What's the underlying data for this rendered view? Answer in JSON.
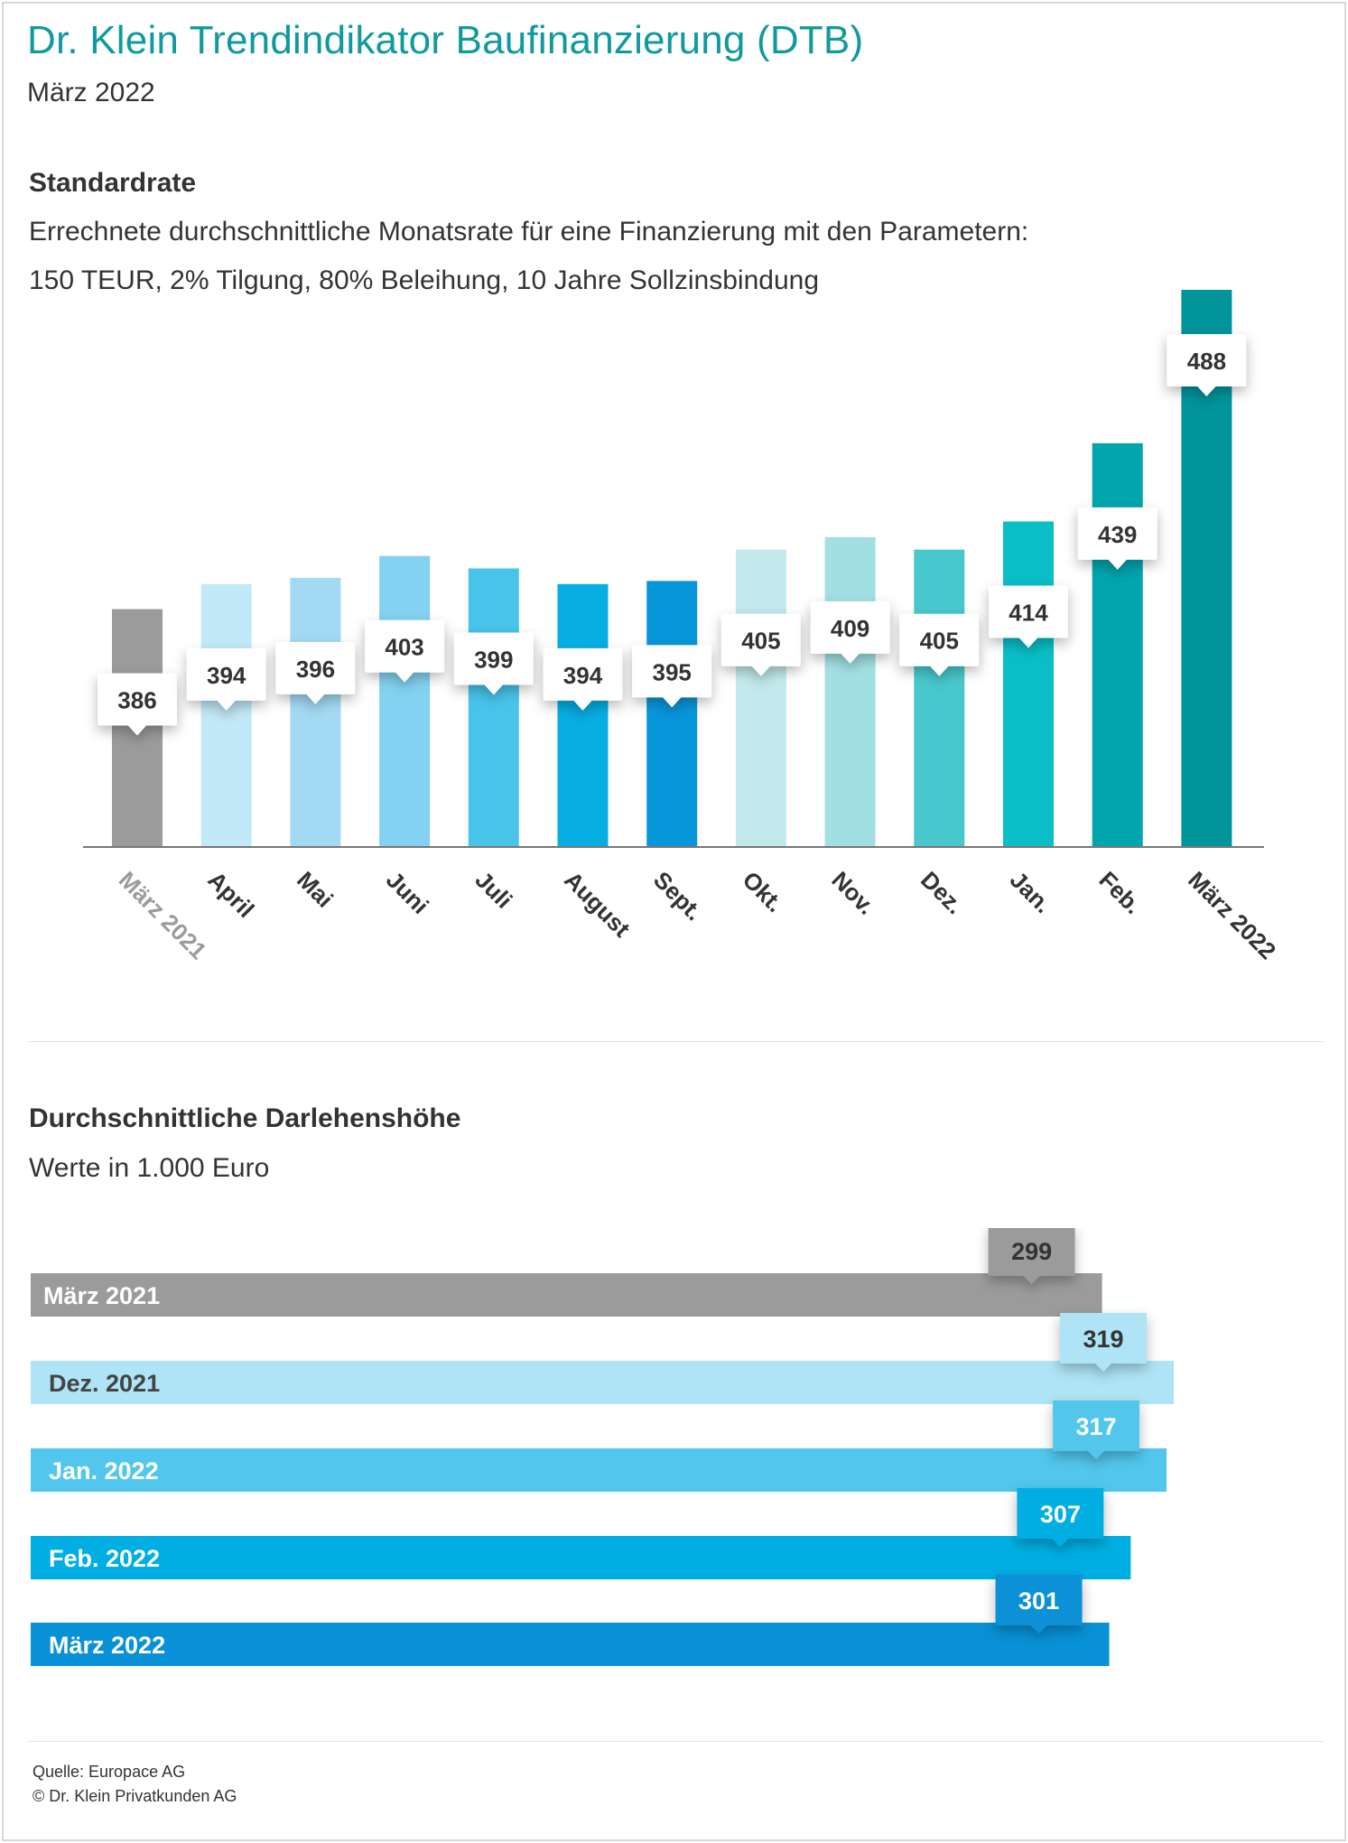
{
  "header": {
    "title": "Dr. Klein Trendindikator Baufinanzierung (DTB)",
    "subtitle": "März 2022"
  },
  "section1": {
    "title": "Standardrate",
    "line1": "Errechnete durchschnittliche Monatsrate für eine Finanzierung mit den Parametern:",
    "line2": "150 TEUR, 2% Tilgung, 80% Beleihung, 10 Jahre Sollzinsbindung"
  },
  "section2": {
    "title": "Durchschnittliche Darlehenshöhe",
    "subtitle": "Werte in 1.000 Euro"
  },
  "footer": {
    "source": "Quelle: Europace AG",
    "copyright": "© Dr. Klein Privatkunden AG"
  },
  "chart_data": [
    {
      "type": "bar",
      "title": "Standardrate",
      "categories": [
        "März 2021",
        "April",
        "Mai",
        "Juni",
        "Juli",
        "August",
        "Sept.",
        "Okt.",
        "Nov.",
        "Dez.",
        "Jan.",
        "Feb.",
        "März 2022"
      ],
      "values": [
        386,
        394,
        396,
        403,
        399,
        394,
        395,
        405,
        409,
        405,
        414,
        439,
        488
      ],
      "bar_colors": [
        "#9b9b9b",
        "#c2e9f7",
        "#a3d9f3",
        "#83d2f1",
        "#48c3ea",
        "#06aee3",
        "#0896da",
        "#c2e9ec",
        "#a1dfe2",
        "#48c8cc",
        "#09bec6",
        "#00a5ad",
        "#00959b"
      ],
      "label_colors": [
        "#9b9b9b",
        "#333333",
        "#333333",
        "#333333",
        "#333333",
        "#333333",
        "#333333",
        "#333333",
        "#333333",
        "#333333",
        "#333333",
        "#333333",
        "#333333"
      ],
      "grid": false,
      "legend": "none"
    },
    {
      "type": "bar",
      "orientation": "horizontal",
      "title": "Durchschnittliche Darlehenshöhe",
      "categories": [
        "März 2021",
        "Dez. 2021",
        "Jan. 2022",
        "Feb. 2022",
        "März 2022"
      ],
      "values": [
        299,
        319,
        317,
        307,
        301
      ],
      "bar_colors": [
        "#9b9b9b",
        "#aee4f5",
        "#52c6ec",
        "#00aee3",
        "#0891d6"
      ],
      "label_colors": [
        "#ffffff",
        "#444444",
        "#ffffff",
        "#ffffff",
        "#ffffff"
      ],
      "tag_text_colors": [
        "#333333",
        "#333333",
        "#ffffff",
        "#ffffff",
        "#ffffff"
      ],
      "grid": false,
      "legend": "none"
    }
  ]
}
